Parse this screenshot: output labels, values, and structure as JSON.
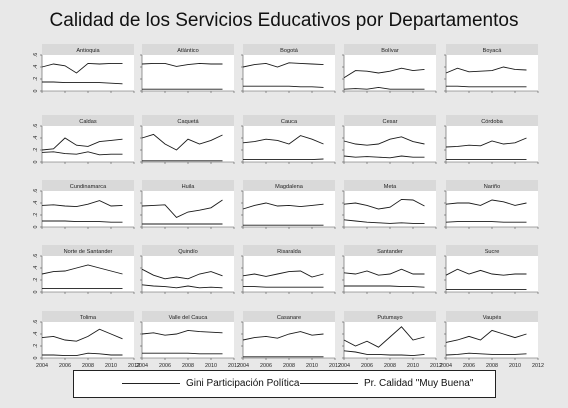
{
  "chart_data": {
    "type": "line",
    "title": "Calidad de los Servicios Educativos por Departamentos",
    "xlabel": "",
    "ylim": [
      0,
      0.6
    ],
    "xlim": [
      2004,
      2012
    ],
    "y_ticks": [
      "0",
      ".2",
      ".4",
      ".6"
    ],
    "x_ticks": [
      "2004",
      "2006",
      "2008",
      "2010",
      "2012"
    ],
    "x": [
      2004,
      2005,
      2006,
      2007,
      2008,
      2009,
      2010,
      2011
    ],
    "legend": [
      "Gini Participación Política",
      "Pr. Calidad \"Muy Buena\""
    ],
    "legend_position": "bottom",
    "panels": [
      {
        "name": "Antioquia",
        "gini": [
          0.4,
          0.45,
          0.42,
          0.3,
          0.46,
          0.45,
          0.46,
          0.46
        ],
        "calidad": [
          0.15,
          0.15,
          0.14,
          0.14,
          0.14,
          0.14,
          0.13,
          0.12
        ]
      },
      {
        "name": "Atlántico",
        "gini": [
          0.45,
          0.46,
          0.46,
          0.41,
          0.44,
          0.46,
          0.45,
          0.45
        ],
        "calidad": [
          0.03,
          0.03,
          0.03,
          0.03,
          0.03,
          0.03,
          0.03,
          0.03
        ]
      },
      {
        "name": "Bogotá",
        "gini": [
          0.4,
          0.44,
          0.46,
          0.4,
          0.47,
          0.46,
          0.45,
          0.44
        ],
        "calidad": [
          0.08,
          0.08,
          0.08,
          0.08,
          0.08,
          0.07,
          0.07,
          0.06
        ]
      },
      {
        "name": "Bolívar",
        "gini": [
          0.22,
          0.34,
          0.33,
          0.3,
          0.33,
          0.38,
          0.34,
          0.36
        ],
        "calidad": [
          0.03,
          0.04,
          0.03,
          0.06,
          0.03,
          0.03,
          0.03,
          0.03
        ]
      },
      {
        "name": "Boyacá",
        "gini": [
          0.3,
          0.38,
          0.32,
          0.33,
          0.34,
          0.4,
          0.36,
          0.35
        ],
        "calidad": [
          0.08,
          0.08,
          0.07,
          0.07,
          0.07,
          0.07,
          0.07,
          0.07
        ]
      },
      {
        "name": "Caldas",
        "gini": [
          0.2,
          0.22,
          0.4,
          0.28,
          0.26,
          0.34,
          0.36,
          0.38
        ],
        "calidad": [
          0.16,
          0.17,
          0.14,
          0.13,
          0.17,
          0.12,
          0.13,
          0.13
        ]
      },
      {
        "name": "Caquetá",
        "gini": [
          0.4,
          0.46,
          0.3,
          0.2,
          0.38,
          0.3,
          0.36,
          0.45
        ],
        "calidad": [
          0.02,
          0.02,
          0.02,
          0.02,
          0.02,
          0.02,
          0.02,
          0.02
        ]
      },
      {
        "name": "Cauca",
        "gini": [
          0.32,
          0.34,
          0.38,
          0.36,
          0.3,
          0.44,
          0.38,
          0.3
        ],
        "calidad": [
          0.04,
          0.04,
          0.04,
          0.04,
          0.04,
          0.04,
          0.04,
          0.05
        ]
      },
      {
        "name": "Cesar",
        "gini": [
          0.35,
          0.3,
          0.28,
          0.3,
          0.38,
          0.42,
          0.34,
          0.3
        ],
        "calidad": [
          0.1,
          0.08,
          0.09,
          0.08,
          0.07,
          0.1,
          0.08,
          0.08
        ]
      },
      {
        "name": "Córdoba",
        "gini": [
          0.25,
          0.26,
          0.28,
          0.27,
          0.35,
          0.3,
          0.32,
          0.4
        ],
        "calidad": [
          0.04,
          0.04,
          0.04,
          0.04,
          0.04,
          0.04,
          0.04,
          0.04
        ]
      },
      {
        "name": "Cundinamarca",
        "gini": [
          0.36,
          0.37,
          0.35,
          0.34,
          0.38,
          0.44,
          0.35,
          0.36
        ],
        "calidad": [
          0.1,
          0.1,
          0.1,
          0.09,
          0.09,
          0.09,
          0.08,
          0.08
        ]
      },
      {
        "name": "Huila",
        "gini": [
          0.35,
          0.36,
          0.37,
          0.16,
          0.25,
          0.28,
          0.32,
          0.45
        ],
        "calidad": [
          0.05,
          0.05,
          0.05,
          0.05,
          0.05,
          0.05,
          0.05,
          0.05
        ]
      },
      {
        "name": "Magdalena",
        "gini": [
          0.3,
          0.36,
          0.4,
          0.35,
          0.36,
          0.34,
          0.36,
          0.38
        ],
        "calidad": [
          0.03,
          0.03,
          0.03,
          0.03,
          0.03,
          0.03,
          0.03,
          0.03
        ]
      },
      {
        "name": "Meta",
        "gini": [
          0.38,
          0.4,
          0.36,
          0.3,
          0.33,
          0.46,
          0.45,
          0.35
        ],
        "calidad": [
          0.12,
          0.1,
          0.08,
          0.07,
          0.06,
          0.07,
          0.06,
          0.06
        ]
      },
      {
        "name": "Nariño",
        "gini": [
          0.38,
          0.4,
          0.4,
          0.36,
          0.45,
          0.42,
          0.36,
          0.4
        ],
        "calidad": [
          0.08,
          0.09,
          0.09,
          0.09,
          0.09,
          0.08,
          0.08,
          0.08
        ]
      },
      {
        "name": "Norte de Santander",
        "gini": [
          0.3,
          0.34,
          0.35,
          0.4,
          0.45,
          0.4,
          0.35,
          0.3
        ],
        "calidad": [
          0.06,
          0.06,
          0.06,
          0.06,
          0.06,
          0.06,
          0.06,
          0.06
        ]
      },
      {
        "name": "Quindío",
        "gini": [
          0.38,
          0.28,
          0.22,
          0.25,
          0.22,
          0.3,
          0.34,
          0.27
        ],
        "calidad": [
          0.12,
          0.1,
          0.09,
          0.07,
          0.1,
          0.07,
          0.08,
          0.07
        ]
      },
      {
        "name": "Risaralda",
        "gini": [
          0.27,
          0.3,
          0.26,
          0.3,
          0.34,
          0.35,
          0.25,
          0.3
        ],
        "calidad": [
          0.09,
          0.09,
          0.08,
          0.08,
          0.08,
          0.08,
          0.08,
          0.08
        ]
      },
      {
        "name": "Santander",
        "gini": [
          0.32,
          0.3,
          0.35,
          0.28,
          0.3,
          0.38,
          0.3,
          0.3
        ],
        "calidad": [
          0.1,
          0.1,
          0.1,
          0.1,
          0.1,
          0.09,
          0.09,
          0.08
        ]
      },
      {
        "name": "Sucre",
        "gini": [
          0.28,
          0.38,
          0.3,
          0.36,
          0.3,
          0.28,
          0.3,
          0.3
        ],
        "calidad": [
          0.04,
          0.04,
          0.04,
          0.04,
          0.04,
          0.04,
          0.04,
          0.04
        ]
      },
      {
        "name": "Tolima",
        "gini": [
          0.34,
          0.36,
          0.3,
          0.28,
          0.36,
          0.48,
          0.4,
          0.32
        ],
        "calidad": [
          0.05,
          0.05,
          0.04,
          0.04,
          0.08,
          0.07,
          0.05,
          0.05
        ]
      },
      {
        "name": "Valle del Cauca",
        "gini": [
          0.4,
          0.42,
          0.38,
          0.4,
          0.46,
          0.44,
          0.43,
          0.42
        ],
        "calidad": [
          0.08,
          0.08,
          0.08,
          0.08,
          0.08,
          0.07,
          0.07,
          0.07
        ]
      },
      {
        "name": "Casanare",
        "gini": [
          0.3,
          0.34,
          0.36,
          0.33,
          0.4,
          0.44,
          0.38,
          0.4
        ],
        "calidad": [
          0.02,
          0.02,
          0.02,
          0.02,
          0.02,
          0.02,
          0.02,
          0.02
        ]
      },
      {
        "name": "Putumayo",
        "gini": [
          0.3,
          0.2,
          0.28,
          0.18,
          0.35,
          0.52,
          0.3,
          0.35
        ],
        "calidad": [
          0.12,
          0.1,
          0.06,
          0.06,
          0.05,
          0.05,
          0.04,
          0.06
        ]
      },
      {
        "name": "Vaupés",
        "gini": [
          0.26,
          0.3,
          0.36,
          0.3,
          0.46,
          0.4,
          0.34,
          0.4
        ],
        "calidad": [
          0.05,
          0.06,
          0.08,
          0.07,
          0.06,
          0.06,
          0.06,
          0.07
        ]
      }
    ]
  }
}
